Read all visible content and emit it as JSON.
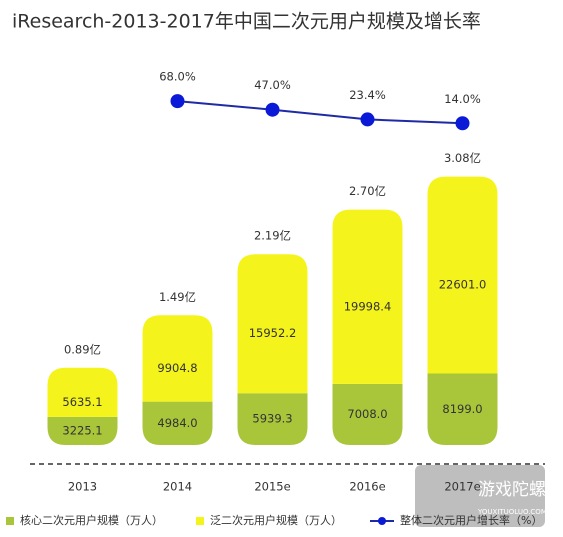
{
  "chart_data": {
    "type": "bar",
    "title": "iResearch-2013-2017年中国二次元用户规模及增长率",
    "categories": [
      "2013",
      "2014",
      "2015e",
      "2016e",
      "2017e"
    ],
    "ylim": [
      0,
      35000
    ],
    "y2lim": [
      0,
      100
    ],
    "series": [
      {
        "name": "核心二次元用户规模（万人）",
        "color": "#a9c63b",
        "values": [
          3225.1,
          4984.0,
          5939.3,
          7008.0,
          8199.0
        ],
        "value_labels": [
          "3225.1",
          "4984.0",
          "5939.3",
          "7008.0",
          "8199.0"
        ]
      },
      {
        "name": "泛二次元用户规模（万人）",
        "color": "#f4f41c",
        "values": [
          5635.1,
          9904.8,
          15952.2,
          19998.4,
          22601.0
        ],
        "value_labels": [
          "5635.1",
          "9904.8",
          "15952.2",
          "19998.4",
          "22601.0"
        ]
      },
      {
        "name": "整体二次元用户增长率（%）",
        "color": "#1f2aa6",
        "type": "line",
        "axis": "y2",
        "values": [
          null,
          68.0,
          47.0,
          23.4,
          14.0
        ],
        "value_labels": [
          null,
          "68.0%",
          "47.0%",
          "23.4%",
          "14.0%"
        ]
      }
    ],
    "totals": [
      "0.89亿",
      "1.49亿",
      "2.19亿",
      "2.70亿",
      "3.08亿"
    ],
    "watermark": "游戏陀螺",
    "watermark_sub": "YOUXITUOLUO.COM"
  }
}
